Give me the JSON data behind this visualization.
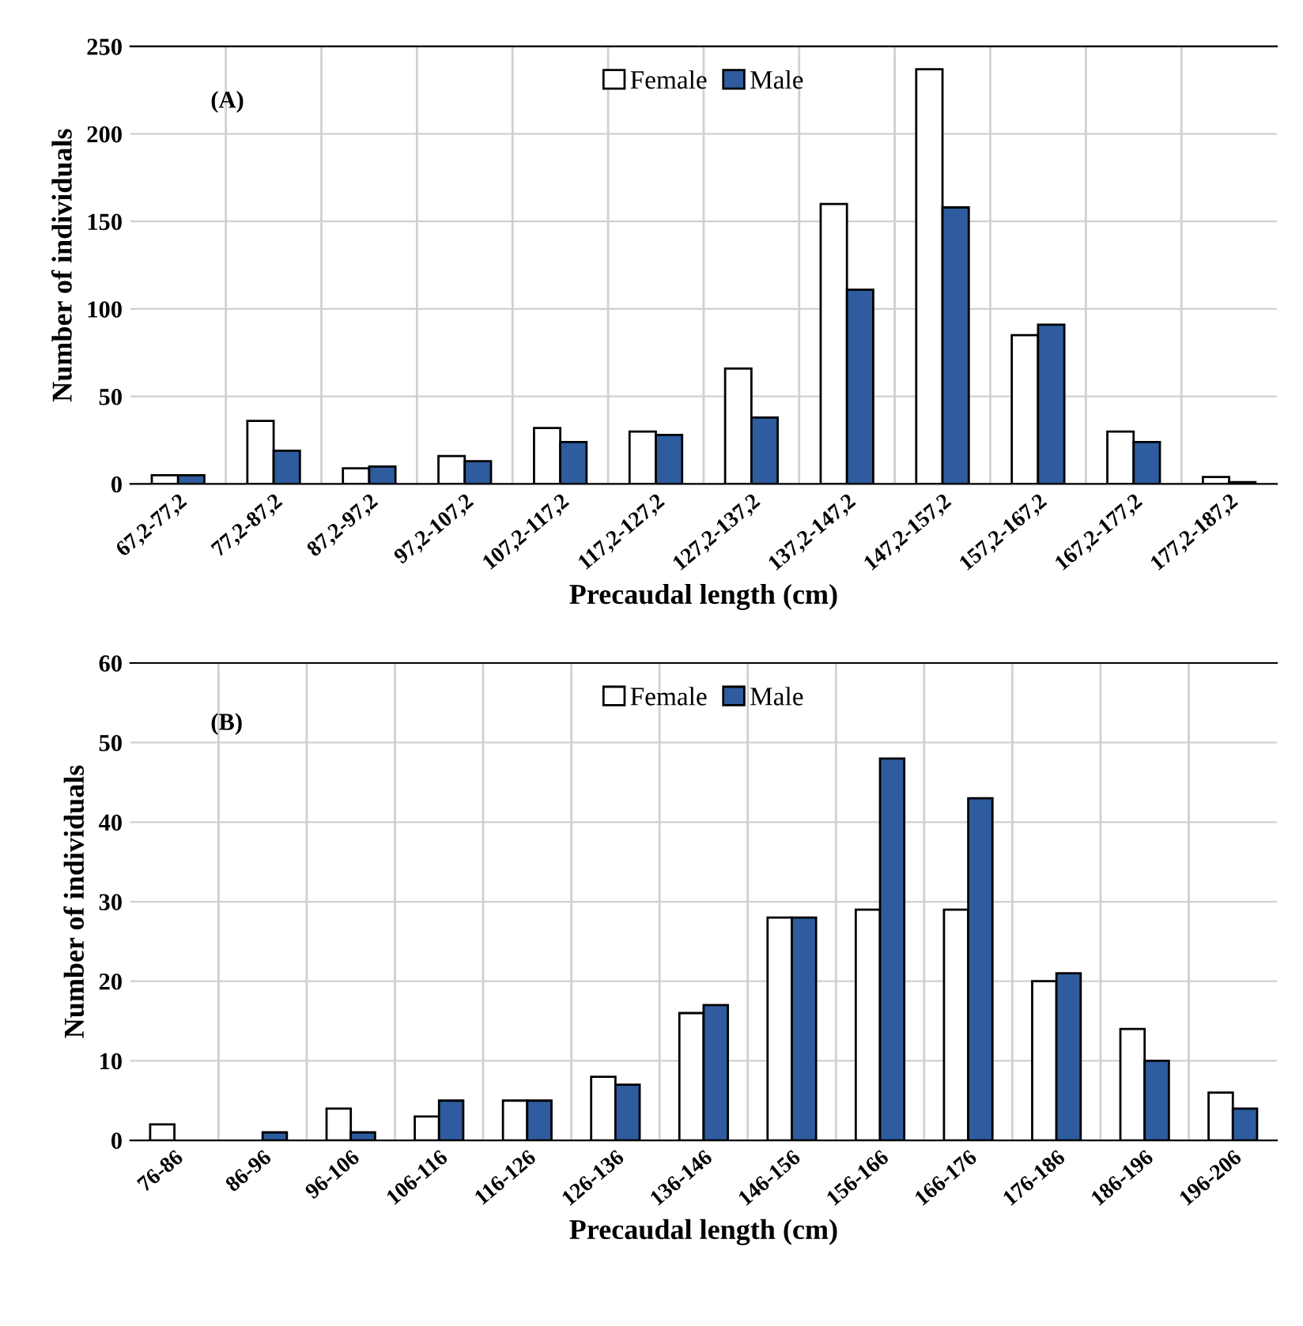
{
  "chart_data": [
    {
      "type": "bar",
      "annotations": [
        "(A)"
      ],
      "xlabel": "Precaudal length (cm)",
      "ylabel": "Number of individuals",
      "categories": [
        "67,2-77,2",
        "77,2-87,2",
        "87,2-97,2",
        "97,2-107,2",
        "107,2-117,2",
        "117,2-127,2",
        "127,2-137,2",
        "137,2-147,2",
        "147,2-157,2",
        "157,2-167,2",
        "167,2-177,2",
        "177,2-187,2"
      ],
      "series": [
        {
          "name": "Female",
          "color": "#ffffff",
          "values": [
            5,
            36,
            9,
            16,
            32,
            30,
            66,
            160,
            237,
            85,
            30,
            4
          ]
        },
        {
          "name": "Male",
          "color": "#2e5c9e",
          "values": [
            5,
            19,
            10,
            13,
            24,
            28,
            38,
            111,
            158,
            91,
            24,
            1
          ]
        }
      ],
      "ylim": [
        0,
        250
      ],
      "yticks": [
        0,
        50,
        100,
        150,
        200,
        250
      ],
      "grid": true,
      "legend": "top"
    },
    {
      "type": "bar",
      "annotations": [
        "(B)"
      ],
      "xlabel": "Precaudal length (cm)",
      "ylabel": "Number of individuals",
      "categories": [
        "76-86",
        "86-96",
        "96-106",
        "106-116",
        "116-126",
        "126-136",
        "136-146",
        "146-156",
        "156-166",
        "166-176",
        "176-186",
        "186-196",
        "196-206"
      ],
      "series": [
        {
          "name": "Female",
          "color": "#ffffff",
          "values": [
            2,
            0,
            4,
            3,
            5,
            8,
            16,
            28,
            29,
            29,
            20,
            14,
            6
          ]
        },
        {
          "name": "Male",
          "color": "#2e5c9e",
          "values": [
            0,
            1,
            1,
            5,
            5,
            7,
            17,
            28,
            48,
            43,
            21,
            10,
            4
          ]
        }
      ],
      "ylim": [
        0,
        60
      ],
      "yticks": [
        0,
        10,
        20,
        30,
        40,
        50,
        60
      ],
      "grid": true,
      "legend": "top"
    }
  ]
}
